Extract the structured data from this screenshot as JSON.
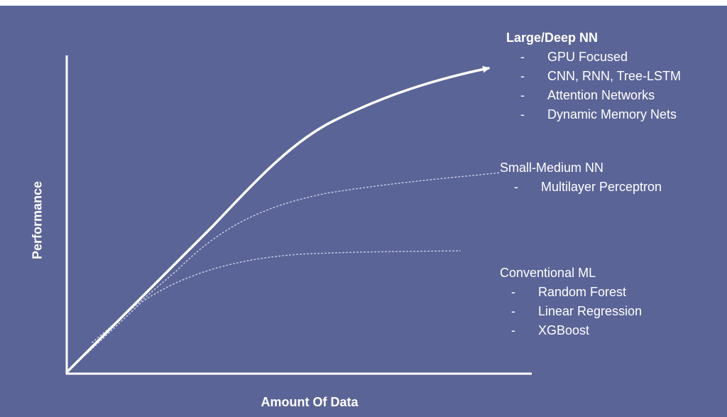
{
  "axes": {
    "y_label": "Performance",
    "x_label": "Amount Of Data"
  },
  "groups": {
    "large_deep": {
      "heading": "Large/Deep NN",
      "items": [
        "GPU Focused",
        "CNN, RNN, Tree-LSTM",
        "Attention Networks",
        "Dynamic Memory Nets"
      ]
    },
    "small_medium": {
      "heading": "Small-Medium NN",
      "items": [
        "Multilayer Perceptron"
      ]
    },
    "conventional": {
      "heading": "Conventional ML",
      "items": [
        "Random Forest",
        "Linear Regression",
        "XGBoost"
      ]
    }
  },
  "bullet": "-",
  "colors": {
    "background": "#5b6496",
    "foreground": "#ffffff",
    "page": "#ffffff"
  }
}
